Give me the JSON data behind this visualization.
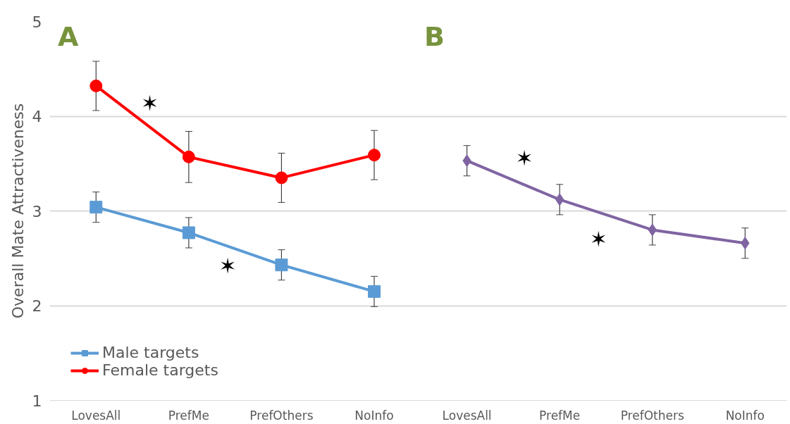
{
  "chart_data": {
    "type": "line",
    "ylabel": "Overall Mate Attractiveness",
    "categories": [
      "LovesAll",
      "PrefMe",
      "PrefOthers",
      "NoInfo",
      "LovesAll",
      "PrefMe",
      "PrefOthers",
      "NoInfo"
    ],
    "series": [
      {
        "name": "Male targets",
        "color": "#5b9bd5",
        "marker": "square",
        "values": [
          3.04,
          2.77,
          2.43,
          2.15,
          null,
          null,
          null,
          null
        ],
        "errors": [
          0.16,
          0.16,
          0.16,
          0.16,
          null,
          null,
          null,
          null
        ]
      },
      {
        "name": "Female targets",
        "color": "#ff0000",
        "marker": "circle",
        "values": [
          4.32,
          3.57,
          3.35,
          3.59,
          null,
          null,
          null,
          null
        ],
        "errors": [
          0.26,
          0.27,
          0.26,
          0.26,
          null,
          null,
          null,
          null
        ]
      },
      {
        "color": "#8064a2",
        "marker": "diamond",
        "values": [
          null,
          null,
          null,
          null,
          3.53,
          3.12,
          2.8,
          2.66
        ],
        "errors": [
          null,
          null,
          null,
          null,
          0.16,
          0.16,
          0.16,
          0.16
        ]
      }
    ],
    "ylim": [
      1,
      5
    ],
    "yticks": [
      1,
      2,
      3,
      4,
      5
    ],
    "grid": "y",
    "legend": "bottom left",
    "annotations": [
      "A",
      "B",
      "✶",
      "✶",
      "✶",
      "✶"
    ]
  }
}
